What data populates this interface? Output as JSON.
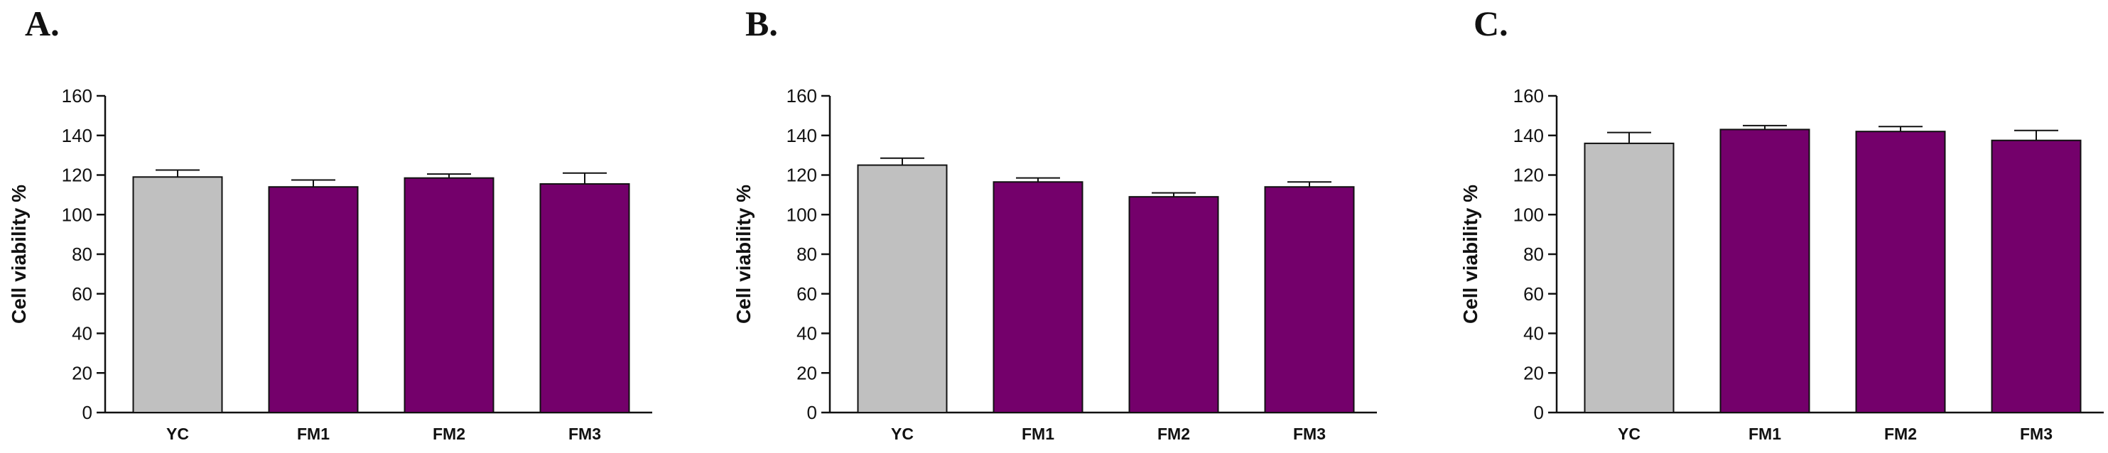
{
  "chart_data": [
    {
      "panel": "A.",
      "type": "bar",
      "categories": [
        "YC",
        "FM1",
        "FM2",
        "FM3"
      ],
      "values": [
        119,
        114,
        118.5,
        115.5
      ],
      "errors": [
        3.5,
        3.5,
        2,
        5.5
      ],
      "colors": [
        "#c0c0c0",
        "#74006b",
        "#74006b",
        "#74006b"
      ],
      "ylabel": "Cell viability %",
      "xlabel": "",
      "ylim": [
        0,
        160
      ],
      "yticks": [
        0,
        20,
        40,
        60,
        80,
        100,
        120,
        140,
        160
      ],
      "grid": false
    },
    {
      "panel": "B.",
      "type": "bar",
      "categories": [
        "YC",
        "FM1",
        "FM2",
        "FM3"
      ],
      "values": [
        125,
        116.5,
        109,
        114
      ],
      "errors": [
        3.5,
        2,
        2,
        2.5
      ],
      "colors": [
        "#c0c0c0",
        "#74006b",
        "#74006b",
        "#74006b"
      ],
      "ylabel": "Cell viability %",
      "xlabel": "",
      "ylim": [
        0,
        160
      ],
      "yticks": [
        0,
        20,
        40,
        60,
        80,
        100,
        120,
        140,
        160
      ],
      "grid": false
    },
    {
      "panel": "C.",
      "type": "bar",
      "categories": [
        "YC",
        "FM1",
        "FM2",
        "FM3"
      ],
      "values": [
        136,
        143,
        142,
        137.5
      ],
      "errors": [
        5.5,
        2,
        2.5,
        5
      ],
      "colors": [
        "#c0c0c0",
        "#74006b",
        "#74006b",
        "#74006b"
      ],
      "ylabel": "Cell viability %",
      "xlabel": "",
      "ylim": [
        0,
        160
      ],
      "yticks": [
        0,
        20,
        40,
        60,
        80,
        100,
        120,
        140,
        160
      ],
      "grid": false
    }
  ]
}
